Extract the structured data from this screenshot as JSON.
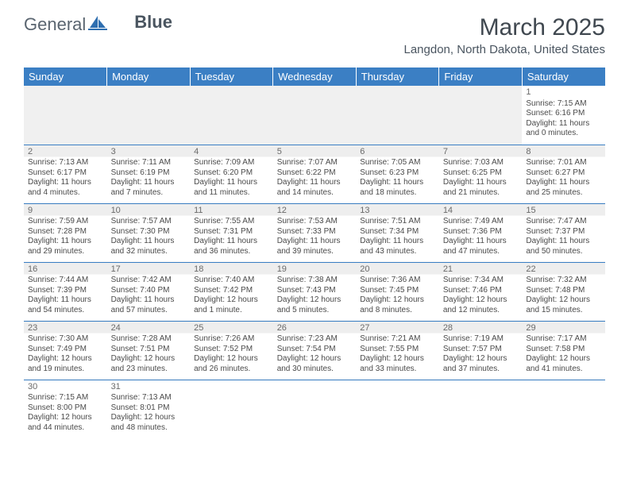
{
  "brand": {
    "part1": "General",
    "part2": "Blue",
    "sail_color": "#2f6fb0"
  },
  "title": "March 2025",
  "location": "Langdon, North Dakota, United States",
  "colors": {
    "header_bg": "#3b7fc4",
    "header_fg": "#ffffff",
    "border": "#3b7fc4",
    "shaded": "#eeeeee"
  },
  "day_headers": [
    "Sunday",
    "Monday",
    "Tuesday",
    "Wednesday",
    "Thursday",
    "Friday",
    "Saturday"
  ],
  "weeks": [
    [
      null,
      null,
      null,
      null,
      null,
      null,
      {
        "n": "1",
        "sr": "Sunrise: 7:15 AM",
        "ss": "Sunset: 6:16 PM",
        "d1": "Daylight: 11 hours",
        "d2": "and 0 minutes."
      }
    ],
    [
      {
        "n": "2",
        "sr": "Sunrise: 7:13 AM",
        "ss": "Sunset: 6:17 PM",
        "d1": "Daylight: 11 hours",
        "d2": "and 4 minutes."
      },
      {
        "n": "3",
        "sr": "Sunrise: 7:11 AM",
        "ss": "Sunset: 6:19 PM",
        "d1": "Daylight: 11 hours",
        "d2": "and 7 minutes."
      },
      {
        "n": "4",
        "sr": "Sunrise: 7:09 AM",
        "ss": "Sunset: 6:20 PM",
        "d1": "Daylight: 11 hours",
        "d2": "and 11 minutes."
      },
      {
        "n": "5",
        "sr": "Sunrise: 7:07 AM",
        "ss": "Sunset: 6:22 PM",
        "d1": "Daylight: 11 hours",
        "d2": "and 14 minutes."
      },
      {
        "n": "6",
        "sr": "Sunrise: 7:05 AM",
        "ss": "Sunset: 6:23 PM",
        "d1": "Daylight: 11 hours",
        "d2": "and 18 minutes."
      },
      {
        "n": "7",
        "sr": "Sunrise: 7:03 AM",
        "ss": "Sunset: 6:25 PM",
        "d1": "Daylight: 11 hours",
        "d2": "and 21 minutes."
      },
      {
        "n": "8",
        "sr": "Sunrise: 7:01 AM",
        "ss": "Sunset: 6:27 PM",
        "d1": "Daylight: 11 hours",
        "d2": "and 25 minutes."
      }
    ],
    [
      {
        "n": "9",
        "sr": "Sunrise: 7:59 AM",
        "ss": "Sunset: 7:28 PM",
        "d1": "Daylight: 11 hours",
        "d2": "and 29 minutes."
      },
      {
        "n": "10",
        "sr": "Sunrise: 7:57 AM",
        "ss": "Sunset: 7:30 PM",
        "d1": "Daylight: 11 hours",
        "d2": "and 32 minutes."
      },
      {
        "n": "11",
        "sr": "Sunrise: 7:55 AM",
        "ss": "Sunset: 7:31 PM",
        "d1": "Daylight: 11 hours",
        "d2": "and 36 minutes."
      },
      {
        "n": "12",
        "sr": "Sunrise: 7:53 AM",
        "ss": "Sunset: 7:33 PM",
        "d1": "Daylight: 11 hours",
        "d2": "and 39 minutes."
      },
      {
        "n": "13",
        "sr": "Sunrise: 7:51 AM",
        "ss": "Sunset: 7:34 PM",
        "d1": "Daylight: 11 hours",
        "d2": "and 43 minutes."
      },
      {
        "n": "14",
        "sr": "Sunrise: 7:49 AM",
        "ss": "Sunset: 7:36 PM",
        "d1": "Daylight: 11 hours",
        "d2": "and 47 minutes."
      },
      {
        "n": "15",
        "sr": "Sunrise: 7:47 AM",
        "ss": "Sunset: 7:37 PM",
        "d1": "Daylight: 11 hours",
        "d2": "and 50 minutes."
      }
    ],
    [
      {
        "n": "16",
        "sr": "Sunrise: 7:44 AM",
        "ss": "Sunset: 7:39 PM",
        "d1": "Daylight: 11 hours",
        "d2": "and 54 minutes."
      },
      {
        "n": "17",
        "sr": "Sunrise: 7:42 AM",
        "ss": "Sunset: 7:40 PM",
        "d1": "Daylight: 11 hours",
        "d2": "and 57 minutes."
      },
      {
        "n": "18",
        "sr": "Sunrise: 7:40 AM",
        "ss": "Sunset: 7:42 PM",
        "d1": "Daylight: 12 hours",
        "d2": "and 1 minute."
      },
      {
        "n": "19",
        "sr": "Sunrise: 7:38 AM",
        "ss": "Sunset: 7:43 PM",
        "d1": "Daylight: 12 hours",
        "d2": "and 5 minutes."
      },
      {
        "n": "20",
        "sr": "Sunrise: 7:36 AM",
        "ss": "Sunset: 7:45 PM",
        "d1": "Daylight: 12 hours",
        "d2": "and 8 minutes."
      },
      {
        "n": "21",
        "sr": "Sunrise: 7:34 AM",
        "ss": "Sunset: 7:46 PM",
        "d1": "Daylight: 12 hours",
        "d2": "and 12 minutes."
      },
      {
        "n": "22",
        "sr": "Sunrise: 7:32 AM",
        "ss": "Sunset: 7:48 PM",
        "d1": "Daylight: 12 hours",
        "d2": "and 15 minutes."
      }
    ],
    [
      {
        "n": "23",
        "sr": "Sunrise: 7:30 AM",
        "ss": "Sunset: 7:49 PM",
        "d1": "Daylight: 12 hours",
        "d2": "and 19 minutes."
      },
      {
        "n": "24",
        "sr": "Sunrise: 7:28 AM",
        "ss": "Sunset: 7:51 PM",
        "d1": "Daylight: 12 hours",
        "d2": "and 23 minutes."
      },
      {
        "n": "25",
        "sr": "Sunrise: 7:26 AM",
        "ss": "Sunset: 7:52 PM",
        "d1": "Daylight: 12 hours",
        "d2": "and 26 minutes."
      },
      {
        "n": "26",
        "sr": "Sunrise: 7:23 AM",
        "ss": "Sunset: 7:54 PM",
        "d1": "Daylight: 12 hours",
        "d2": "and 30 minutes."
      },
      {
        "n": "27",
        "sr": "Sunrise: 7:21 AM",
        "ss": "Sunset: 7:55 PM",
        "d1": "Daylight: 12 hours",
        "d2": "and 33 minutes."
      },
      {
        "n": "28",
        "sr": "Sunrise: 7:19 AM",
        "ss": "Sunset: 7:57 PM",
        "d1": "Daylight: 12 hours",
        "d2": "and 37 minutes."
      },
      {
        "n": "29",
        "sr": "Sunrise: 7:17 AM",
        "ss": "Sunset: 7:58 PM",
        "d1": "Daylight: 12 hours",
        "d2": "and 41 minutes."
      }
    ],
    [
      {
        "n": "30",
        "sr": "Sunrise: 7:15 AM",
        "ss": "Sunset: 8:00 PM",
        "d1": "Daylight: 12 hours",
        "d2": "and 44 minutes."
      },
      {
        "n": "31",
        "sr": "Sunrise: 7:13 AM",
        "ss": "Sunset: 8:01 PM",
        "d1": "Daylight: 12 hours",
        "d2": "and 48 minutes."
      },
      null,
      null,
      null,
      null,
      null
    ]
  ]
}
